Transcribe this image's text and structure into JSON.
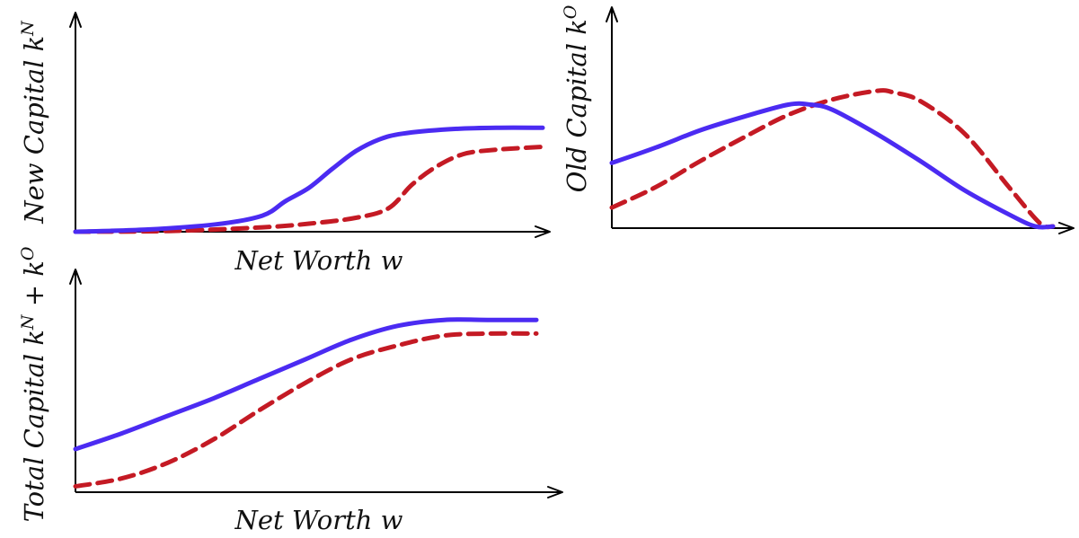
{
  "colors": {
    "solid": "#4b2bf2",
    "dashed": "#c41a24"
  },
  "chart_data": [
    {
      "type": "line",
      "xlabel": "Net Worth w",
      "ylabel": {
        "base": "New Capital k",
        "sup": "N",
        "tail": ""
      },
      "xlim": [
        0,
        100
      ],
      "ylim": [
        0,
        100
      ],
      "grid": false,
      "series": [
        {
          "style": "solid",
          "x": [
            0,
            15,
            30,
            40,
            45,
            50,
            55,
            60,
            65,
            70,
            80,
            90,
            100
          ],
          "y": [
            0,
            1.5,
            5,
            11,
            21,
            30,
            43,
            55,
            63,
            67,
            70,
            71,
            71
          ]
        },
        {
          "style": "dashed",
          "x": [
            0,
            20,
            40,
            50,
            60,
            67,
            72,
            77,
            83,
            90,
            100
          ],
          "y": [
            0,
            0.5,
            3,
            5.5,
            9.5,
            16,
            32,
            44,
            53,
            56,
            58
          ]
        }
      ]
    },
    {
      "type": "line",
      "xlabel": "",
      "ylabel": {
        "base": "Old Capital k",
        "sup": "O",
        "tail": ""
      },
      "xlim": [
        0,
        100
      ],
      "ylim": [
        0,
        100
      ],
      "grid": false,
      "series": [
        {
          "style": "solid",
          "x": [
            0,
            10,
            20,
            30,
            40,
            45,
            50,
            60,
            70,
            80,
            90,
            96,
            100
          ],
          "y": [
            38,
            47,
            57,
            65,
            72,
            72,
            69,
            55,
            39,
            22,
            8,
            1,
            1
          ]
        },
        {
          "style": "dashed",
          "x": [
            0,
            10,
            20,
            30,
            40,
            50,
            60,
            64,
            70,
            80,
            90,
            97,
            100
          ],
          "y": [
            12,
            24,
            39,
            53,
            66,
            75,
            80,
            79,
            74,
            55,
            24,
            3,
            1
          ]
        }
      ]
    },
    {
      "type": "line",
      "xlabel": "Net Worth w",
      "ylabel": {
        "base": "Total Capital k",
        "sup": "N",
        "tail": " + k",
        "sup2": "O"
      },
      "xlim": [
        0,
        100
      ],
      "ylim": [
        0,
        100
      ],
      "grid": false,
      "series": [
        {
          "style": "solid",
          "x": [
            0,
            10,
            20,
            30,
            40,
            50,
            60,
            70,
            80,
            90,
            100
          ],
          "y": [
            22,
            30,
            39,
            48,
            58,
            68,
            78,
            85,
            88,
            88,
            88
          ]
        },
        {
          "style": "dashed",
          "x": [
            0,
            10,
            20,
            30,
            40,
            50,
            60,
            70,
            80,
            90,
            100
          ],
          "y": [
            3,
            7,
            15,
            27,
            42,
            56,
            68,
            75,
            80,
            81,
            81
          ]
        }
      ]
    }
  ]
}
